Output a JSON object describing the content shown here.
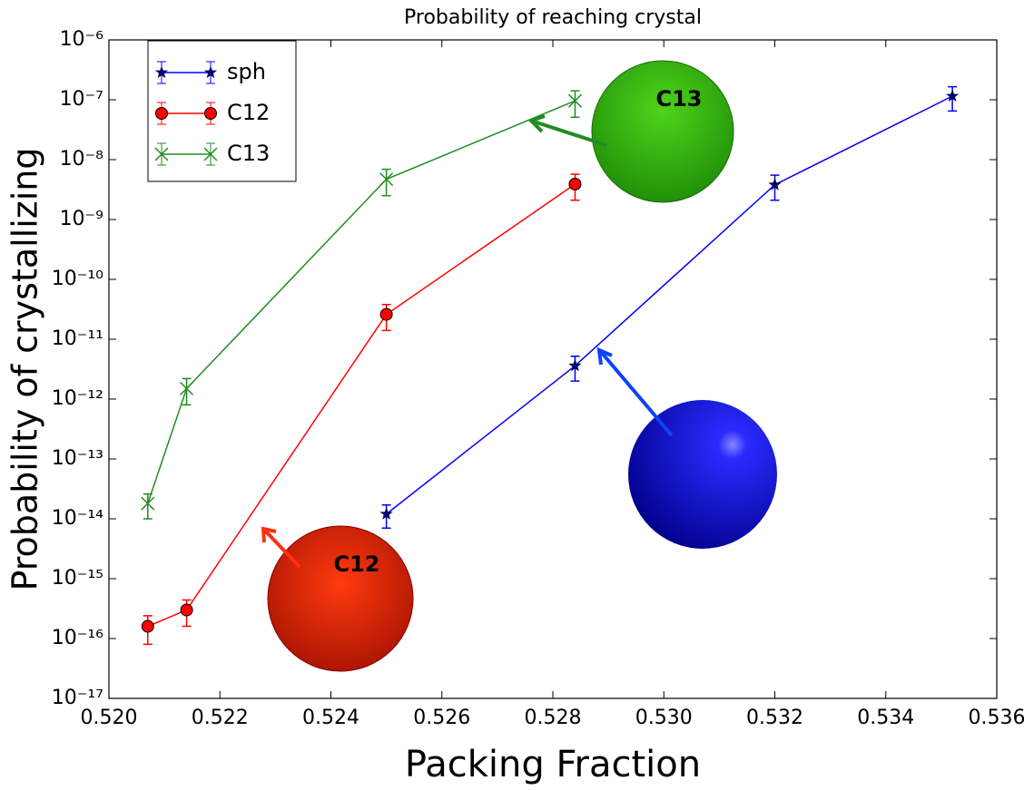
{
  "chart_data": {
    "type": "line",
    "title": "Probability of reaching crystal",
    "x_label": "Packing Fraction",
    "y_label": "Probability of crystallizing",
    "log_y": true,
    "legend": "upper left",
    "xlim": [
      0.52,
      0.536
    ],
    "xticks": [
      {
        "value": 0.52,
        "label": "0.520"
      },
      {
        "value": 0.522,
        "label": "0.522"
      },
      {
        "value": 0.524,
        "label": "0.524"
      },
      {
        "value": 0.526,
        "label": "0.526"
      },
      {
        "value": 0.528,
        "label": "0.528"
      },
      {
        "value": 0.53,
        "label": "0.530"
      },
      {
        "value": 0.532,
        "label": "0.532"
      },
      {
        "value": 0.534,
        "label": "0.534"
      },
      {
        "value": 0.536,
        "label": "0.536"
      }
    ],
    "ylim": [
      1e-17,
      1e-06
    ],
    "yticks": [
      {
        "value": 1e-17,
        "label": "10⁻¹⁷"
      },
      {
        "value": 1e-16,
        "label": "10⁻¹⁶"
      },
      {
        "value": 1e-15,
        "label": "10⁻¹⁵"
      },
      {
        "value": 1e-14,
        "label": "10⁻¹⁴"
      },
      {
        "value": 1e-13,
        "label": "10⁻¹³"
      },
      {
        "value": 1e-12,
        "label": "10⁻¹²"
      },
      {
        "value": 1e-11,
        "label": "10⁻¹¹"
      },
      {
        "value": 1e-10,
        "label": "10⁻¹⁰"
      },
      {
        "value": 1e-09,
        "label": "10⁻⁹"
      },
      {
        "value": 1e-08,
        "label": "10⁻⁸"
      },
      {
        "value": 1e-07,
        "label": "10⁻⁷"
      },
      {
        "value": 1e-06,
        "label": "10⁻⁶"
      }
    ],
    "series": [
      {
        "name": "sph",
        "color": "#0000ff",
        "marker": "star",
        "x": [
          0.525,
          0.5284,
          0.532,
          0.5352
        ],
        "values": [
          1.2e-14,
          3.6e-12,
          3.8e-09,
          1.15e-07
        ],
        "yerr": [
          5e-15,
          1.6e-12,
          1.7e-09,
          5e-08
        ]
      },
      {
        "name": "C12",
        "color": "#ff0000",
        "marker": "circle",
        "x": [
          0.5207,
          0.5214,
          0.525,
          0.5284
        ],
        "values": [
          1.6e-16,
          3e-16,
          2.6e-11,
          3.9e-09
        ],
        "yerr": [
          8e-17,
          1.4e-16,
          1.2e-11,
          1.8e-09
        ]
      },
      {
        "name": "C13",
        "color": "#228b22",
        "marker": "x",
        "x": [
          0.5207,
          0.5214,
          0.525,
          0.5284
        ],
        "values": [
          1.8e-14,
          1.5e-12,
          4.7e-09,
          9.6e-08
        ],
        "yerr": [
          8e-15,
          7e-13,
          2.2e-09,
          4.5e-08
        ]
      }
    ],
    "annotations": [
      "C12",
      "C13"
    ]
  }
}
